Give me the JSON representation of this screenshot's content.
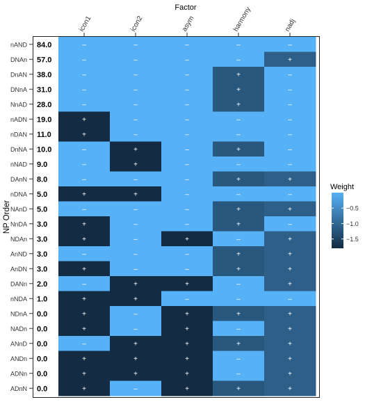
{
  "chart_data": {
    "type": "heatmap",
    "title": "Factor",
    "ylabel": "NP Order",
    "columns": [
      "icon1",
      "icon2",
      "asym",
      "harmony",
      "nadj"
    ],
    "rows": [
      {
        "label": "nAND",
        "value": "84.0",
        "weights": [
          0,
          0,
          0,
          0,
          0
        ],
        "signs": [
          "-",
          "-",
          "-",
          "-",
          "-"
        ]
      },
      {
        "label": "DNAn",
        "value": "57.0",
        "weights": [
          0,
          0,
          0,
          0,
          -1.1
        ],
        "signs": [
          "-",
          "-",
          "-",
          "-",
          "+"
        ]
      },
      {
        "label": "DnAN",
        "value": "38.0",
        "weights": [
          0,
          0,
          0,
          -1.2,
          0
        ],
        "signs": [
          "-",
          "-",
          "-",
          "+",
          "-"
        ]
      },
      {
        "label": "DNnA",
        "value": "31.0",
        "weights": [
          0,
          0,
          0,
          -1.2,
          0
        ],
        "signs": [
          "-",
          "-",
          "-",
          "+",
          "-"
        ]
      },
      {
        "label": "NnAD",
        "value": "28.0",
        "weights": [
          0,
          0,
          0,
          -1.2,
          0
        ],
        "signs": [
          "-",
          "-",
          "-",
          "+",
          "-"
        ]
      },
      {
        "label": "nADN",
        "value": "19.0",
        "weights": [
          -1.8,
          0,
          0,
          0,
          0
        ],
        "signs": [
          "+",
          "-",
          "-",
          "-",
          "-"
        ]
      },
      {
        "label": "nDAN",
        "value": "11.0",
        "weights": [
          -1.8,
          0,
          0,
          0,
          0
        ],
        "signs": [
          "+",
          "-",
          "-",
          "-",
          "-"
        ]
      },
      {
        "label": "DnNA",
        "value": "10.0",
        "weights": [
          0,
          -1.8,
          0,
          -1.2,
          0
        ],
        "signs": [
          "-",
          "+",
          "-",
          "+",
          "-"
        ]
      },
      {
        "label": "nNAD",
        "value": "9.0",
        "weights": [
          0,
          -1.8,
          0,
          0,
          0
        ],
        "signs": [
          "-",
          "+",
          "-",
          "-",
          "-"
        ]
      },
      {
        "label": "DAnN",
        "value": "8.0",
        "weights": [
          0,
          0,
          0,
          -1.2,
          -1.1
        ],
        "signs": [
          "-",
          "-",
          "-",
          "+",
          "+"
        ]
      },
      {
        "label": "nDNA",
        "value": "5.0",
        "weights": [
          -1.8,
          -1.8,
          0,
          0,
          0
        ],
        "signs": [
          "+",
          "+",
          "-",
          "-",
          "-"
        ]
      },
      {
        "label": "NAnD",
        "value": "5.0",
        "weights": [
          0,
          0,
          0,
          -1.2,
          -1.1
        ],
        "signs": [
          "-",
          "-",
          "-",
          "+",
          "+"
        ]
      },
      {
        "label": "NnDA",
        "value": "3.0",
        "weights": [
          -1.8,
          0,
          0,
          -1.2,
          0
        ],
        "signs": [
          "+",
          "-",
          "-",
          "+",
          "-"
        ]
      },
      {
        "label": "NDAn",
        "value": "3.0",
        "weights": [
          -1.8,
          0,
          -1.8,
          0,
          -1.1
        ],
        "signs": [
          "+",
          "-",
          "+",
          "-",
          "+"
        ]
      },
      {
        "label": "AnND",
        "value": "3.0",
        "weights": [
          0,
          0,
          0,
          -1.2,
          -1.1
        ],
        "signs": [
          "-",
          "-",
          "-",
          "+",
          "+"
        ]
      },
      {
        "label": "AnDN",
        "value": "3.0",
        "weights": [
          -1.8,
          0,
          0,
          -1.2,
          -1.1
        ],
        "signs": [
          "+",
          "-",
          "-",
          "+",
          "+"
        ]
      },
      {
        "label": "DANn",
        "value": "2.0",
        "weights": [
          0,
          -1.8,
          -1.8,
          0,
          -1.1
        ],
        "signs": [
          "-",
          "+",
          "+",
          "-",
          "+"
        ]
      },
      {
        "label": "nNDA",
        "value": "1.0",
        "weights": [
          -1.8,
          -1.8,
          0,
          0,
          0
        ],
        "signs": [
          "+",
          "+",
          "-",
          "-",
          "-"
        ]
      },
      {
        "label": "NDnA",
        "value": "0.0",
        "weights": [
          -1.8,
          0,
          -1.8,
          -1.2,
          -1.1
        ],
        "signs": [
          "+",
          "-",
          "+",
          "+",
          "+"
        ]
      },
      {
        "label": "NADn",
        "value": "0.0",
        "weights": [
          -1.8,
          0,
          -1.8,
          0,
          -1.1
        ],
        "signs": [
          "+",
          "-",
          "+",
          "-",
          "+"
        ]
      },
      {
        "label": "ANnD",
        "value": "0.0",
        "weights": [
          0,
          -1.8,
          -1.8,
          -1.2,
          -1.1
        ],
        "signs": [
          "-",
          "+",
          "+",
          "+",
          "+"
        ]
      },
      {
        "label": "ANDn",
        "value": "0.0",
        "weights": [
          -1.8,
          -1.8,
          -1.8,
          0,
          -1.1
        ],
        "signs": [
          "+",
          "+",
          "+",
          "-",
          "+"
        ]
      },
      {
        "label": "ADNn",
        "value": "0.0",
        "weights": [
          -1.8,
          -1.8,
          -1.8,
          0,
          -1.1
        ],
        "signs": [
          "+",
          "+",
          "+",
          "-",
          "+"
        ]
      },
      {
        "label": "ADnN",
        "value": "0.0",
        "weights": [
          -1.8,
          0,
          -1.8,
          -1.2,
          -1.1
        ],
        "signs": [
          "+",
          "-",
          "+",
          "+",
          "+"
        ]
      }
    ],
    "legend": {
      "title": "Weight",
      "ticks": [
        -0.5,
        -1.0,
        -1.5
      ],
      "tick_labels": [
        "−0.5",
        "−1.0",
        "−1.5"
      ],
      "range": [
        -1.8,
        0
      ],
      "color_low": "#132b43",
      "color_high": "#56b1f7",
      "placement": "right"
    }
  }
}
